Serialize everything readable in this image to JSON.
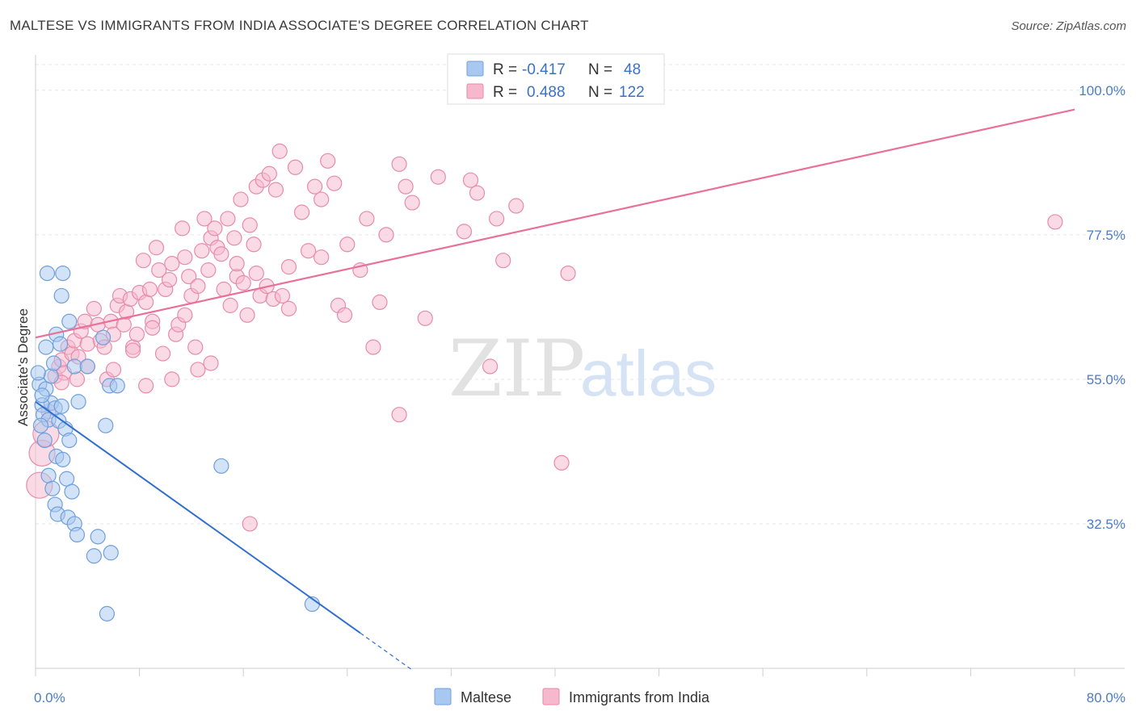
{
  "title": "MALTESE VS IMMIGRANTS FROM INDIA ASSOCIATE'S DEGREE CORRELATION CHART",
  "source": "Source: ZipAtlas.com",
  "watermark": {
    "zip": "ZIP",
    "atlas": "atlas"
  },
  "colors": {
    "maltese_fill": "#a8c8f0",
    "maltese_stroke": "#6f9fdc",
    "maltese_line": "#2f6fd1",
    "india_fill": "#f5b8cc",
    "india_stroke": "#e98aab",
    "india_line": "#e8709a",
    "tick_text": "#4a7cc9",
    "grid": "#e6e6e6"
  },
  "legend": {
    "rows": [
      {
        "r_label": "R =",
        "r_value": "-0.417",
        "n_label": "N =",
        "n_value": "48"
      },
      {
        "r_label": "R =",
        "r_value": "0.488",
        "n_label": "N =",
        "n_value": "122"
      }
    ]
  },
  "chart_data": {
    "type": "scatter",
    "xlabel": "",
    "ylabel": "Associate's Degree",
    "xlim": [
      0,
      80
    ],
    "ylim": [
      10,
      105
    ],
    "x_tick_labels": [
      "0.0%",
      "80.0%"
    ],
    "y_ticks": [
      32.5,
      55.0,
      77.5,
      100.0
    ],
    "y_tick_labels": [
      "32.5%",
      "55.0%",
      "77.5%",
      "100.0%"
    ],
    "grid": "horizontal dashed",
    "legend_position": "top-center",
    "series": [
      {
        "name": "Maltese",
        "trend": {
          "x0": 0,
          "y0": 51.5,
          "x1": 25,
          "y1": 15.5,
          "dashed_to_x": 29
        },
        "points": [
          [
            0.3,
            54.2
          ],
          [
            0.8,
            53.5
          ],
          [
            1.2,
            51.3
          ],
          [
            0.5,
            51.0
          ],
          [
            1.5,
            50.5
          ],
          [
            2.0,
            50.8
          ],
          [
            0.6,
            49.5
          ],
          [
            1.0,
            48.7
          ],
          [
            1.8,
            48.5
          ],
          [
            0.4,
            47.8
          ],
          [
            2.3,
            47.3
          ],
          [
            0.7,
            45.5
          ],
          [
            2.6,
            45.5
          ],
          [
            1.6,
            43.0
          ],
          [
            2.1,
            42.5
          ],
          [
            1.0,
            40.0
          ],
          [
            2.4,
            39.5
          ],
          [
            1.3,
            38.0
          ],
          [
            2.8,
            37.5
          ],
          [
            1.5,
            35.5
          ],
          [
            1.7,
            34.0
          ],
          [
            2.5,
            33.5
          ],
          [
            3.0,
            32.5
          ],
          [
            3.2,
            30.8
          ],
          [
            4.8,
            30.5
          ],
          [
            5.8,
            28.0
          ],
          [
            4.5,
            27.5
          ],
          [
            5.5,
            18.5
          ],
          [
            0.9,
            71.5
          ],
          [
            2.1,
            71.5
          ],
          [
            2.0,
            68.0
          ],
          [
            2.6,
            64.0
          ],
          [
            1.6,
            62.0
          ],
          [
            1.9,
            60.5
          ],
          [
            0.8,
            60.0
          ],
          [
            5.2,
            61.5
          ],
          [
            3.0,
            57.0
          ],
          [
            4.0,
            57.0
          ],
          [
            1.2,
            55.5
          ],
          [
            5.7,
            54.0
          ],
          [
            6.3,
            54.0
          ],
          [
            3.3,
            51.5
          ],
          [
            5.4,
            47.8
          ],
          [
            14.3,
            41.5
          ],
          [
            21.3,
            20.0
          ],
          [
            0.2,
            56.0
          ],
          [
            1.4,
            57.5
          ],
          [
            0.5,
            52.5
          ]
        ]
      },
      {
        "name": "Immigrants from India",
        "trend": {
          "x0": 0,
          "y0": 61.5,
          "x1": 80,
          "y1": 97.0
        },
        "points": [
          [
            0.3,
            38.5
          ],
          [
            0.5,
            43.5
          ],
          [
            0.8,
            46.5
          ],
          [
            1.0,
            50.0
          ],
          [
            1.5,
            55.5
          ],
          [
            1.8,
            57.0
          ],
          [
            2.0,
            58.0
          ],
          [
            2.2,
            56.0
          ],
          [
            2.5,
            60.0
          ],
          [
            2.8,
            59.0
          ],
          [
            3.0,
            61.0
          ],
          [
            3.3,
            58.5
          ],
          [
            3.5,
            62.5
          ],
          [
            3.8,
            64.0
          ],
          [
            4.0,
            60.5
          ],
          [
            4.5,
            66.0
          ],
          [
            4.8,
            63.5
          ],
          [
            5.0,
            61.0
          ],
          [
            5.3,
            60.0
          ],
          [
            5.5,
            55.0
          ],
          [
            5.8,
            64.0
          ],
          [
            6.0,
            62.0
          ],
          [
            6.3,
            66.5
          ],
          [
            6.5,
            68.0
          ],
          [
            6.8,
            63.5
          ],
          [
            7.0,
            65.5
          ],
          [
            7.3,
            67.5
          ],
          [
            7.5,
            60.0
          ],
          [
            7.8,
            62.0
          ],
          [
            8.0,
            68.5
          ],
          [
            8.3,
            73.5
          ],
          [
            8.5,
            67.0
          ],
          [
            8.8,
            69.0
          ],
          [
            9.0,
            64.0
          ],
          [
            9.3,
            75.5
          ],
          [
            9.5,
            72.0
          ],
          [
            9.8,
            59.0
          ],
          [
            10.0,
            69.0
          ],
          [
            10.3,
            70.5
          ],
          [
            10.5,
            73.0
          ],
          [
            10.8,
            62.0
          ],
          [
            11.0,
            63.5
          ],
          [
            11.3,
            78.5
          ],
          [
            11.5,
            74.0
          ],
          [
            11.8,
            71.0
          ],
          [
            12.0,
            68.0
          ],
          [
            12.3,
            60.0
          ],
          [
            12.5,
            56.5
          ],
          [
            12.8,
            75.0
          ],
          [
            13.0,
            80.0
          ],
          [
            13.3,
            72.0
          ],
          [
            13.5,
            77.0
          ],
          [
            13.8,
            78.5
          ],
          [
            14.0,
            75.5
          ],
          [
            14.3,
            74.5
          ],
          [
            14.5,
            69.0
          ],
          [
            14.8,
            80.0
          ],
          [
            15.0,
            66.5
          ],
          [
            15.3,
            77.0
          ],
          [
            15.5,
            71.0
          ],
          [
            15.8,
            83.0
          ],
          [
            16.0,
            70.0
          ],
          [
            16.3,
            65.0
          ],
          [
            16.5,
            79.0
          ],
          [
            16.8,
            76.0
          ],
          [
            17.0,
            85.0
          ],
          [
            17.3,
            68.0
          ],
          [
            17.5,
            86.0
          ],
          [
            17.8,
            69.5
          ],
          [
            18.0,
            87.0
          ],
          [
            18.3,
            67.5
          ],
          [
            18.5,
            84.5
          ],
          [
            18.8,
            90.5
          ],
          [
            19.0,
            68.0
          ],
          [
            19.5,
            72.5
          ],
          [
            20.0,
            88.0
          ],
          [
            20.5,
            81.0
          ],
          [
            21.0,
            75.0
          ],
          [
            21.5,
            85.0
          ],
          [
            22.0,
            83.0
          ],
          [
            22.5,
            89.0
          ],
          [
            23.0,
            85.5
          ],
          [
            23.3,
            66.5
          ],
          [
            23.8,
            65.0
          ],
          [
            25.0,
            72.0
          ],
          [
            25.5,
            80.0
          ],
          [
            26.0,
            60.0
          ],
          [
            27.0,
            77.5
          ],
          [
            28.0,
            88.5
          ],
          [
            28.5,
            85.0
          ],
          [
            29.0,
            82.5
          ],
          [
            30.0,
            64.5
          ],
          [
            31.0,
            86.5
          ],
          [
            33.0,
            78.0
          ],
          [
            33.5,
            86.0
          ],
          [
            34.0,
            84.0
          ],
          [
            35.5,
            80.0
          ],
          [
            36.0,
            73.5
          ],
          [
            37.0,
            82.0
          ],
          [
            40.5,
            42.0
          ],
          [
            41.0,
            71.5
          ],
          [
            16.5,
            32.5
          ],
          [
            28.0,
            49.5
          ],
          [
            35.0,
            57.0
          ],
          [
            8.5,
            54.0
          ],
          [
            10.5,
            55.0
          ],
          [
            13.5,
            57.5
          ],
          [
            4.0,
            57.0
          ],
          [
            6.0,
            56.5
          ],
          [
            3.2,
            55.0
          ],
          [
            2.0,
            54.5
          ],
          [
            7.5,
            59.5
          ],
          [
            9.0,
            63.0
          ],
          [
            11.5,
            65.0
          ],
          [
            12.5,
            69.5
          ],
          [
            15.5,
            73.0
          ],
          [
            17.0,
            71.5
          ],
          [
            19.5,
            66.0
          ],
          [
            22.0,
            74.0
          ],
          [
            24.0,
            76.0
          ],
          [
            26.5,
            67.0
          ],
          [
            78.5,
            79.5
          ]
        ]
      }
    ]
  },
  "bottom_legend": [
    {
      "label": "Maltese"
    },
    {
      "label": "Immigrants from India"
    }
  ]
}
